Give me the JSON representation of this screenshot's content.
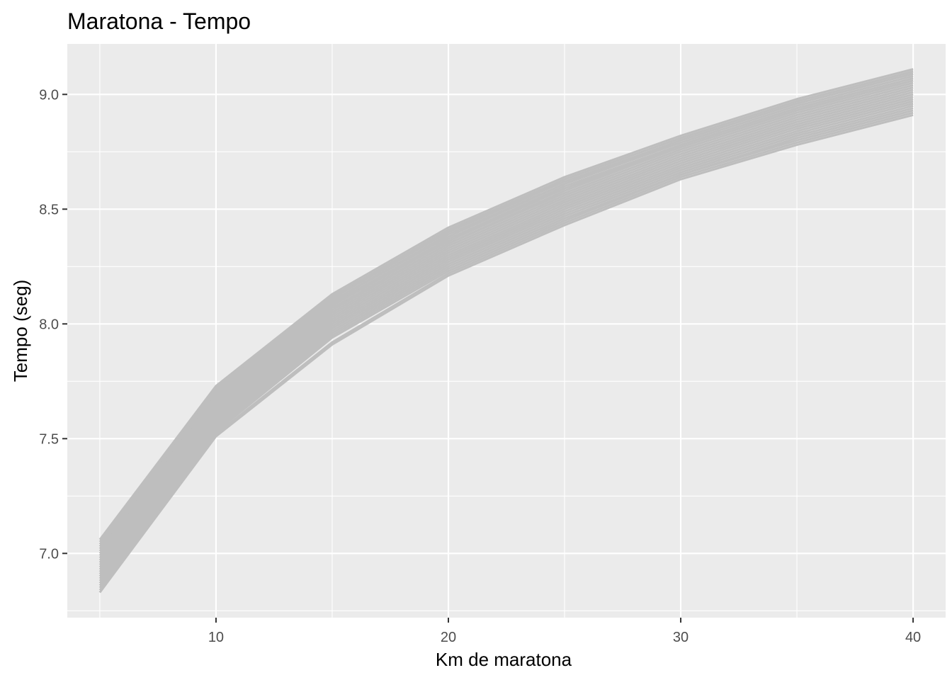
{
  "chart_data": {
    "type": "line",
    "title": "Maratona - Tempo",
    "xlabel": "Km de maratona",
    "ylabel": "Tempo (seg)",
    "x": [
      5,
      10,
      15,
      20,
      25,
      30,
      35,
      40
    ],
    "xlim": [
      3.6,
      41.4
    ],
    "ylim": [
      6.72,
      9.22
    ],
    "x_ticks": [
      10,
      20,
      30,
      40
    ],
    "y_ticks": [
      7.0,
      7.5,
      8.0,
      8.5,
      9.0
    ],
    "x_tick_labels": [
      "10",
      "20",
      "30",
      "40"
    ],
    "y_tick_labels": [
      "7.0",
      "7.5",
      "8.0",
      "8.5",
      "9.0"
    ],
    "grid": true,
    "legend": "none",
    "colors": {
      "panel": "#ebebeb",
      "grid": "#ffffff",
      "line": "#bebebe"
    },
    "series": [
      {
        "values": [
          7.06,
          7.73,
          8.13,
          8.42,
          8.64,
          8.82,
          8.98,
          9.11
        ]
      },
      {
        "values": [
          7.05,
          7.72,
          8.12,
          8.41,
          8.63,
          8.81,
          8.97,
          9.1
        ]
      },
      {
        "values": [
          7.04,
          7.71,
          8.12,
          8.4,
          8.63,
          8.81,
          8.97,
          9.1
        ]
      },
      {
        "values": [
          7.03,
          7.71,
          8.11,
          8.4,
          8.62,
          8.8,
          8.96,
          9.09
        ]
      },
      {
        "values": [
          7.02,
          7.7,
          8.1,
          8.39,
          8.61,
          8.8,
          8.96,
          9.09
        ]
      },
      {
        "values": [
          7.01,
          7.69,
          8.1,
          8.38,
          8.61,
          8.79,
          8.95,
          9.08
        ]
      },
      {
        "values": [
          7.0,
          7.68,
          8.09,
          8.37,
          8.6,
          8.78,
          8.94,
          9.07
        ]
      },
      {
        "values": [
          6.99,
          7.68,
          8.08,
          8.37,
          8.59,
          8.78,
          8.94,
          9.07
        ]
      },
      {
        "values": [
          6.98,
          7.67,
          8.08,
          8.36,
          8.59,
          8.77,
          8.93,
          9.06
        ]
      },
      {
        "values": [
          6.97,
          7.66,
          8.07,
          8.35,
          8.58,
          8.77,
          8.93,
          9.06
        ]
      },
      {
        "values": [
          6.96,
          7.65,
          8.06,
          8.35,
          8.57,
          8.76,
          8.92,
          9.05
        ]
      },
      {
        "values": [
          6.95,
          7.64,
          8.05,
          8.34,
          8.56,
          8.75,
          8.91,
          9.04
        ]
      },
      {
        "values": [
          6.94,
          7.63,
          8.04,
          8.33,
          8.55,
          8.74,
          8.9,
          9.03
        ]
      },
      {
        "values": [
          6.93,
          7.62,
          8.03,
          8.32,
          8.54,
          8.73,
          8.89,
          9.02
        ]
      },
      {
        "values": [
          6.92,
          7.61,
          8.02,
          8.31,
          8.53,
          8.72,
          8.88,
          9.01
        ]
      },
      {
        "values": [
          6.91,
          7.6,
          8.01,
          8.3,
          8.52,
          8.71,
          8.87,
          9.0
        ]
      },
      {
        "values": [
          6.9,
          7.59,
          8.0,
          8.29,
          8.51,
          8.7,
          8.86,
          8.99
        ]
      },
      {
        "values": [
          6.89,
          7.58,
          7.99,
          8.28,
          8.5,
          8.69,
          8.85,
          8.98
        ]
      },
      {
        "values": [
          6.88,
          7.57,
          7.98,
          8.27,
          8.49,
          8.68,
          8.84,
          8.97
        ]
      },
      {
        "values": [
          6.87,
          7.56,
          7.97,
          8.26,
          8.48,
          8.67,
          8.83,
          8.96
        ]
      },
      {
        "values": [
          6.86,
          7.55,
          7.96,
          8.25,
          8.47,
          8.66,
          8.82,
          8.95
        ]
      },
      {
        "values": [
          6.85,
          7.54,
          7.95,
          8.24,
          8.46,
          8.65,
          8.81,
          8.94
        ]
      },
      {
        "values": [
          6.84,
          7.53,
          7.94,
          8.23,
          8.45,
          8.65,
          8.8,
          8.93
        ]
      },
      {
        "values": [
          6.83,
          7.52,
          7.92,
          8.22,
          8.44,
          8.64,
          8.79,
          8.92
        ]
      },
      {
        "values": [
          6.83,
          7.51,
          7.91,
          8.21,
          8.43,
          8.63,
          8.78,
          8.91
        ]
      }
    ]
  }
}
